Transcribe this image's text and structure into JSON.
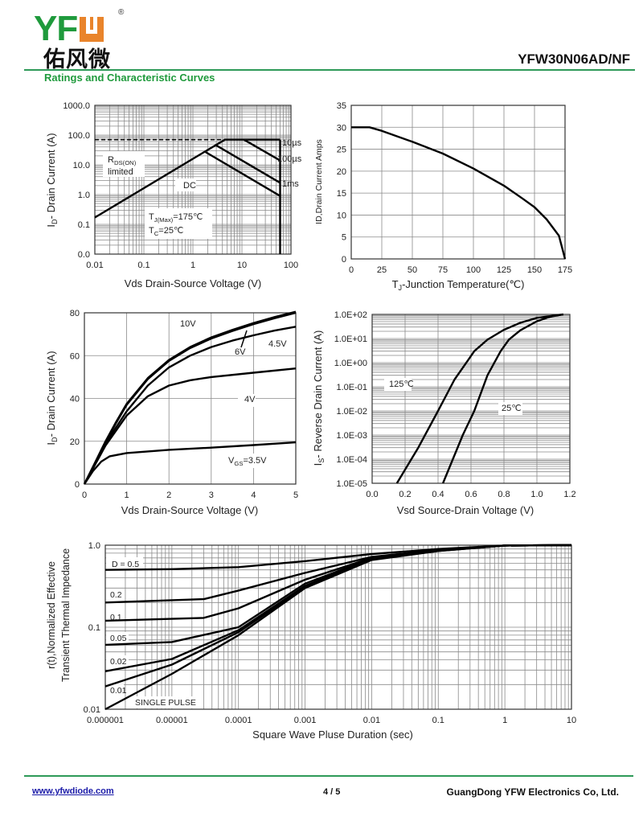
{
  "header": {
    "logo_text": "YFW",
    "logo_chinese": "佑风微",
    "registered_mark": "®",
    "document_title": "YFW30N06AD/NF",
    "section_title": "Ratings and Characteristic Curves"
  },
  "footer": {
    "website": "www.yfwdiode.com",
    "page": "4 / 5",
    "company": "GuangDong YFW Electronics Co, Ltd."
  },
  "colors": {
    "brand_green": "#1f9a3c",
    "brand_orange": "#e9842b",
    "rule_green": "#2e9a58",
    "curve": "#000000",
    "grid": "#8a8a8a"
  },
  "chart_data": [
    {
      "type": "line",
      "title": "",
      "xlabel": "Vds Drain-Source Voltage (V)",
      "ylabel": {
        "text": "I",
        "sub": "D",
        "rest": "- Drain Current (A)"
      },
      "xscale": "log",
      "yscale": "log",
      "xlim": [
        0.01,
        100
      ],
      "ylim": [
        0.01,
        1000
      ],
      "grid": true,
      "xticks": [
        0.01,
        0.1,
        1,
        10,
        100
      ],
      "xtick_labels": [
        "0.01",
        "0.1",
        "1",
        "10",
        "100"
      ],
      "yticks": [
        1000,
        100,
        10,
        1,
        0.1,
        0.01
      ],
      "ytick_labels": [
        "1000.0",
        "100.0",
        "10.0",
        "1.0",
        "0.1",
        "0.0"
      ],
      "series": [
        {
          "name": "RDS(ON) limited",
          "dashed": true,
          "points": [
            [
              0.01,
              70
            ],
            [
              4.5,
              70
            ]
          ]
        },
        {
          "name": "10µs",
          "points": [
            [
              0.01,
              0.17
            ],
            [
              4.5,
              70
            ],
            [
              60,
              70
            ]
          ]
        },
        {
          "name": "100µs",
          "points": [
            [
              11,
              70
            ],
            [
              60,
              14
            ]
          ]
        },
        {
          "name": "1ms",
          "points": [
            [
              3,
              45
            ],
            [
              60,
              2.5
            ]
          ]
        },
        {
          "name": "DC",
          "points": [
            [
              1.8,
              27
            ],
            [
              60,
              0.9
            ]
          ]
        },
        {
          "name": "VDS limit",
          "points": [
            [
              60,
              70
            ],
            [
              60,
              0.01
            ]
          ]
        }
      ],
      "annotations": [
        "10µs",
        "100µs",
        "1ms",
        "DC",
        {
          "text": "R",
          "sub": "DS(ON)",
          "rest": ""
        },
        "limited",
        {
          "text": "T",
          "sub": "J(Max)",
          "rest": "=175℃"
        },
        {
          "text": "T",
          "sub": "C",
          "rest": "=25℃"
        }
      ]
    },
    {
      "type": "line",
      "title": "",
      "xlabel": {
        "text": "T",
        "sub": "J",
        "rest": "-Junction Temperature(℃)"
      },
      "ylabel": "ID,Drain Current Amps",
      "xscale": "linear",
      "yscale": "linear",
      "xlim": [
        0,
        175
      ],
      "ylim": [
        0,
        35
      ],
      "grid": true,
      "xticks": [
        0,
        25,
        50,
        75,
        100,
        125,
        150,
        175
      ],
      "xtick_labels": [
        "0",
        "25",
        "50",
        "75",
        "100",
        "125",
        "150",
        "175"
      ],
      "yticks": [
        0,
        5,
        10,
        15,
        20,
        25,
        30,
        35
      ],
      "ytick_labels": [
        "0",
        "5",
        "10",
        "15",
        "20",
        "25",
        "30",
        "35"
      ],
      "series": [
        {
          "points": [
            [
              0,
              30
            ],
            [
              15,
              30
            ],
            [
              25,
              29.2
            ],
            [
              50,
              26.7
            ],
            [
              75,
              24
            ],
            [
              100,
              20.6
            ],
            [
              125,
              16.7
            ],
            [
              140,
              13.8
            ],
            [
              150,
              11.8
            ],
            [
              160,
              9
            ],
            [
              170,
              5.3
            ],
            [
              175,
              0
            ]
          ]
        }
      ],
      "annotations": []
    },
    {
      "type": "line",
      "title": "",
      "xlabel": "Vds Drain-Source Voltage (V)",
      "ylabel": {
        "text": "I",
        "sub": "D",
        "rest": "- Drain Current (A)"
      },
      "xscale": "linear",
      "yscale": "linear",
      "xlim": [
        0,
        5
      ],
      "ylim": [
        0,
        80
      ],
      "grid": true,
      "xticks": [
        0,
        1,
        2,
        3,
        4,
        5
      ],
      "xtick_labels": [
        "0",
        "1",
        "2",
        "3",
        "4",
        "5"
      ],
      "yticks": [
        0,
        20,
        40,
        60,
        80
      ],
      "ytick_labels": [
        "0",
        "20",
        "40",
        "60",
        "80"
      ],
      "series": [
        {
          "name": "10V",
          "points": [
            [
              0,
              0
            ],
            [
              0.25,
              10
            ],
            [
              0.5,
              20
            ],
            [
              0.75,
              29
            ],
            [
              1,
              37.5
            ],
            [
              1.5,
              49.5
            ],
            [
              2,
              58
            ],
            [
              2.5,
              64
            ],
            [
              3,
              68.5
            ],
            [
              3.5,
              72
            ],
            [
              4,
              75.2
            ],
            [
              4.5,
              78
            ],
            [
              5,
              80.5
            ]
          ]
        },
        {
          "name": "6V",
          "points": [
            [
              0,
              0
            ],
            [
              0.25,
              9.8
            ],
            [
              0.5,
              19.5
            ],
            [
              0.75,
              28.5
            ],
            [
              1,
              37
            ],
            [
              1.5,
              49
            ],
            [
              2,
              57.5
            ],
            [
              2.5,
              63.5
            ],
            [
              3,
              68
            ],
            [
              3.5,
              71.5
            ],
            [
              4,
              74.7
            ],
            [
              4.5,
              77.5
            ],
            [
              5,
              80
            ]
          ]
        },
        {
          "name": "4.5V",
          "points": [
            [
              0,
              0
            ],
            [
              0.5,
              19
            ],
            [
              1,
              34
            ],
            [
              1.5,
              46
            ],
            [
              2,
              54.5
            ],
            [
              2.5,
              60
            ],
            [
              3,
              64
            ],
            [
              3.5,
              67
            ],
            [
              4,
              69.5
            ],
            [
              4.5,
              71.7
            ],
            [
              5,
              73.5
            ]
          ]
        },
        {
          "name": "4V",
          "points": [
            [
              0,
              0
            ],
            [
              0.5,
              18
            ],
            [
              1,
              32
            ],
            [
              1.5,
              41
            ],
            [
              2,
              46
            ],
            [
              2.5,
              48.5
            ],
            [
              3,
              50
            ],
            [
              4,
              52
            ],
            [
              5,
              54
            ]
          ]
        },
        {
          "name": "VGS=3.5V",
          "points": [
            [
              0,
              0
            ],
            [
              0.2,
              6
            ],
            [
              0.4,
              10.5
            ],
            [
              0.6,
              13
            ],
            [
              1,
              14.5
            ],
            [
              2,
              16
            ],
            [
              3,
              17
            ],
            [
              4,
              18.2
            ],
            [
              5,
              19.5
            ]
          ]
        }
      ],
      "annotations": [
        "10V",
        "6V",
        "4.5V",
        "4V",
        {
          "text": "V",
          "sub": "GS",
          "rest": "=3.5V"
        }
      ]
    },
    {
      "type": "line",
      "title": "",
      "xlabel": "Vsd Source-Drain Voltage (V)",
      "ylabel": {
        "text": "I",
        "sub": "S",
        "rest": "- Reverse Drain Current (A)"
      },
      "xscale": "linear",
      "yscale": "log",
      "xlim": [
        0,
        1.2
      ],
      "ylim": [
        1e-05,
        100
      ],
      "grid": true,
      "xticks": [
        0,
        0.2,
        0.4,
        0.6,
        0.8,
        1.0,
        1.2
      ],
      "xtick_labels": [
        "0.0",
        "0.2",
        "0.4",
        "0.6",
        "0.8",
        "1.0",
        "1.2"
      ],
      "yticks": [
        100,
        10,
        1,
        0.1,
        0.01,
        0.001,
        0.0001,
        1e-05
      ],
      "ytick_labels": [
        "1.0E+02",
        "1.0E+01",
        "1.0E+00",
        "1.0E-01",
        "1.0E-02",
        "1.0E-03",
        "1.0E-04",
        "1.0E-05"
      ],
      "series": [
        {
          "name": "125℃",
          "points": [
            [
              0.15,
              1e-05
            ],
            [
              0.28,
              0.0003
            ],
            [
              0.4,
              0.01
            ],
            [
              0.5,
              0.2
            ],
            [
              0.58,
              1.2
            ],
            [
              0.62,
              3
            ],
            [
              0.7,
              9
            ],
            [
              0.8,
              23
            ],
            [
              0.9,
              45
            ],
            [
              1.0,
              72
            ],
            [
              1.16,
              100
            ]
          ]
        },
        {
          "name": "25℃",
          "points": [
            [
              0.43,
              1e-05
            ],
            [
              0.55,
              0.001
            ],
            [
              0.62,
              0.01
            ],
            [
              0.7,
              0.3
            ],
            [
              0.78,
              3
            ],
            [
              0.83,
              9
            ],
            [
              0.9,
              22
            ],
            [
              1.0,
              52
            ],
            [
              1.08,
              80
            ],
            [
              1.16,
              100
            ]
          ]
        }
      ],
      "annotations": [
        "125℃",
        "25℃"
      ]
    },
    {
      "type": "line",
      "title": "",
      "xlabel": "Square Wave Pluse Duration (sec)",
      "ylabel": [
        "r(t),Normalized Effective",
        "Transient Thermal Impedance"
      ],
      "xscale": "log",
      "yscale": "log",
      "xlim": [
        1e-06,
        10
      ],
      "ylim": [
        0.01,
        1
      ],
      "grid": true,
      "xticks": [
        1e-06,
        1e-05,
        0.0001,
        0.001,
        0.01,
        0.1,
        1,
        10
      ],
      "xtick_labels": [
        "0.000001",
        "0.00001",
        "0.0001",
        "0.001",
        "0.01",
        "0.1",
        "1",
        "10"
      ],
      "yticks": [
        1,
        0.1,
        0.01
      ],
      "ytick_labels": [
        "1.0",
        "0.1",
        "0.01"
      ],
      "series": [
        {
          "name": "D = 0.5",
          "points": [
            [
              1e-06,
              0.5
            ],
            [
              1e-05,
              0.51
            ],
            [
              0.0001,
              0.54
            ],
            [
              0.001,
              0.64
            ],
            [
              0.01,
              0.78
            ],
            [
              0.1,
              0.9
            ],
            [
              1,
              0.99
            ],
            [
              10,
              1
            ]
          ]
        },
        {
          "name": "0.2",
          "points": [
            [
              1e-06,
              0.2
            ],
            [
              3e-05,
              0.22
            ],
            [
              0.0001,
              0.28
            ],
            [
              0.001,
              0.46
            ],
            [
              0.01,
              0.72
            ],
            [
              0.1,
              0.88
            ],
            [
              1,
              0.99
            ],
            [
              10,
              1
            ]
          ]
        },
        {
          "name": "0.1",
          "points": [
            [
              1e-06,
              0.12
            ],
            [
              3e-05,
              0.13
            ],
            [
              0.0001,
              0.17
            ],
            [
              0.001,
              0.38
            ],
            [
              0.01,
              0.7
            ],
            [
              0.1,
              0.87
            ],
            [
              1,
              0.99
            ],
            [
              10,
              1
            ]
          ]
        },
        {
          "name": "0.05",
          "points": [
            [
              1e-06,
              0.061
            ],
            [
              1e-05,
              0.066
            ],
            [
              0.0001,
              0.1
            ],
            [
              0.001,
              0.34
            ],
            [
              0.01,
              0.69
            ],
            [
              0.1,
              0.86
            ],
            [
              1,
              0.99
            ],
            [
              10,
              1
            ]
          ]
        },
        {
          "name": "0.02",
          "points": [
            [
              1e-06,
              0.029
            ],
            [
              1e-05,
              0.041
            ],
            [
              0.0001,
              0.092
            ],
            [
              0.001,
              0.32
            ],
            [
              0.01,
              0.68
            ],
            [
              0.1,
              0.86
            ],
            [
              1,
              0.99
            ],
            [
              10,
              1
            ]
          ]
        },
        {
          "name": "0.01",
          "points": [
            [
              1e-06,
              0.019
            ],
            [
              1e-05,
              0.035
            ],
            [
              0.0001,
              0.087
            ],
            [
              0.001,
              0.31
            ],
            [
              0.01,
              0.67
            ],
            [
              0.1,
              0.85
            ],
            [
              1,
              0.99
            ],
            [
              10,
              1
            ]
          ]
        },
        {
          "name": "SINGLE PULSE",
          "points": [
            [
              1e-06,
              0.01
            ],
            [
              1e-05,
              0.027
            ],
            [
              0.0001,
              0.08
            ],
            [
              0.001,
              0.3
            ],
            [
              0.01,
              0.66
            ],
            [
              0.1,
              0.85
            ],
            [
              1,
              0.99
            ],
            [
              10,
              1
            ]
          ]
        }
      ],
      "annotations": [
        "D = 0.5",
        "0.2",
        "0.1",
        "0.05",
        "0.02",
        "0.01",
        "SINGLE PULSE"
      ]
    }
  ]
}
